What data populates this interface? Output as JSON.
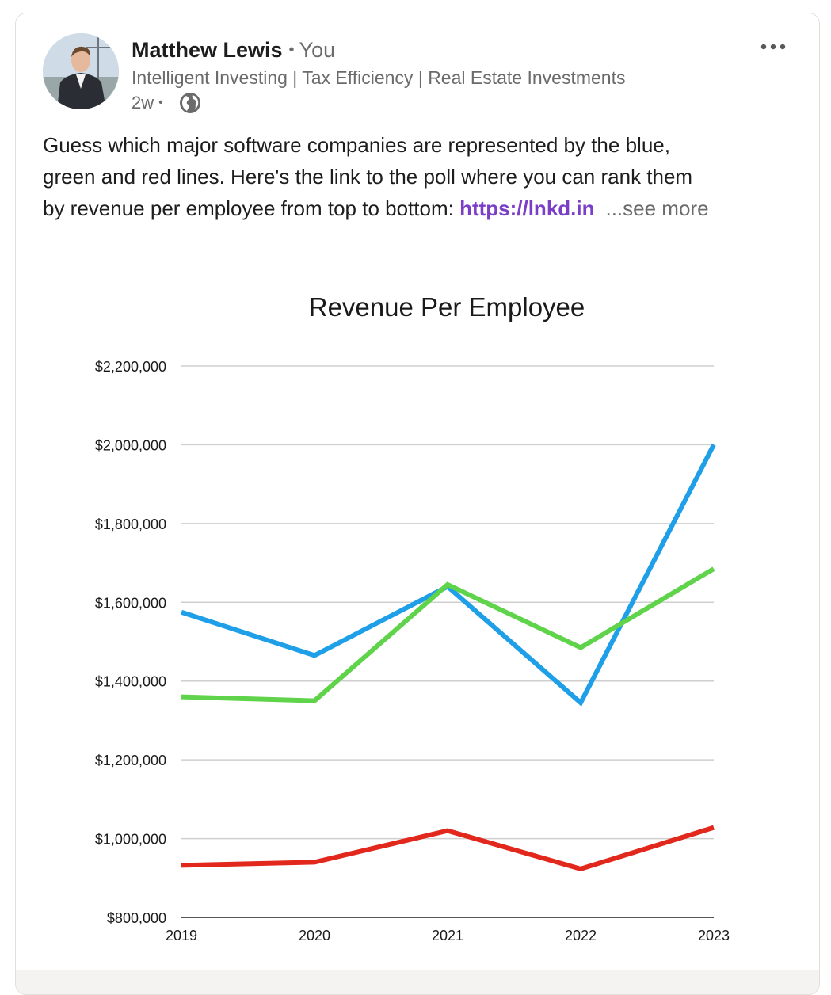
{
  "post": {
    "author_name": "Matthew Lewis",
    "author_relation": "You",
    "separator": "•",
    "headline": "Intelligent Investing | Tax Efficiency | Real Estate Investments",
    "time_ago": "2w",
    "visibility_icon": "globe-icon",
    "text_lines": [
      "Guess which major software companies are represented by the blue,",
      "green and red lines. Here's the link to the poll where you can rank them",
      "by revenue per employee from top to bottom: "
    ],
    "link_text": "https://lnkd.in",
    "see_more": "...see more"
  },
  "colors": {
    "blue": "#1f9fe8",
    "green": "#5fd34a",
    "red": "#e2281c",
    "link": "#7a3ec7"
  },
  "chart_data": {
    "type": "line",
    "title": "Revenue Per Employee",
    "xlabel": "",
    "ylabel": "",
    "categories": [
      "2019",
      "2020",
      "2021",
      "2022",
      "2023"
    ],
    "ylim": [
      800000,
      2200000
    ],
    "yticks": [
      800000,
      1000000,
      1200000,
      1400000,
      1600000,
      1800000,
      2000000,
      2200000
    ],
    "ytick_labels": [
      "$800,000",
      "$1,000,000",
      "$1,200,000",
      "$1,400,000",
      "$1,600,000",
      "$1,800,000",
      "$2,000,000",
      "$2,200,000"
    ],
    "grid": true,
    "legend": "none",
    "series": [
      {
        "name": "blue",
        "color": "#1f9fe8",
        "values": [
          1575000,
          1465000,
          1640000,
          1345000,
          2000000
        ]
      },
      {
        "name": "green",
        "color": "#5fd34a",
        "values": [
          1360000,
          1350000,
          1645000,
          1485000,
          1685000
        ]
      },
      {
        "name": "red",
        "color": "#e2281c",
        "values": [
          932000,
          940000,
          1020000,
          923000,
          1028000
        ]
      }
    ]
  }
}
